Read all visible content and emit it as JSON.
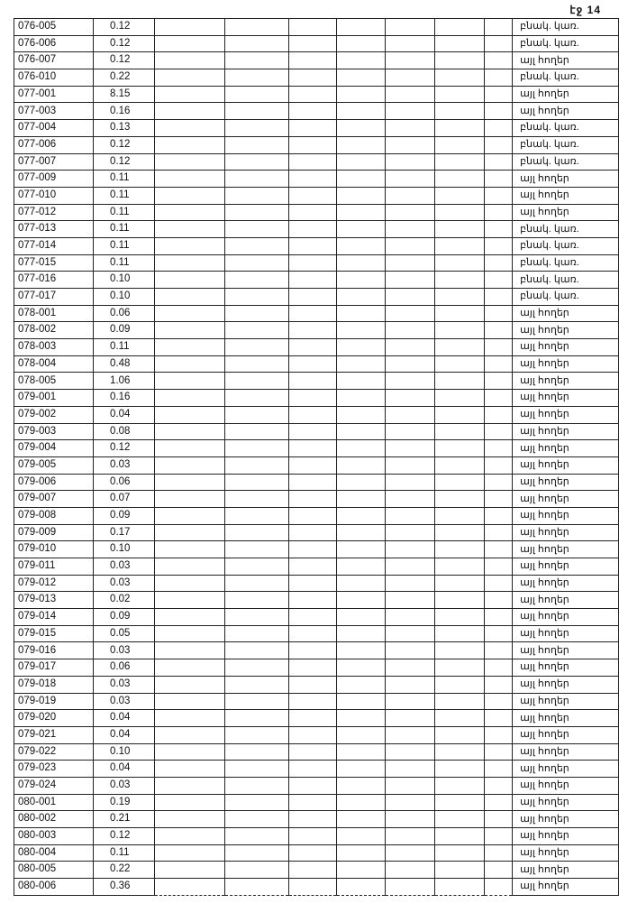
{
  "page_label": "էջ 14",
  "empty_columns": 7,
  "rows": [
    {
      "id": "076-005",
      "area": "0.12",
      "type": "բնակ. կառ."
    },
    {
      "id": "076-006",
      "area": "0.12",
      "type": "բնակ. կառ."
    },
    {
      "id": "076-007",
      "area": "0.12",
      "type": "այլ հողեր"
    },
    {
      "id": "076-010",
      "area": "0.22",
      "type": "բնակ. կառ."
    },
    {
      "id": "077-001",
      "area": "8.15",
      "type": "այլ հողեր"
    },
    {
      "id": "077-003",
      "area": "0.16",
      "type": "այլ հողեր"
    },
    {
      "id": "077-004",
      "area": "0.13",
      "type": "բնակ. կառ."
    },
    {
      "id": "077-006",
      "area": "0.12",
      "type": "բնակ. կառ."
    },
    {
      "id": "077-007",
      "area": "0.12",
      "type": "բնակ. կառ."
    },
    {
      "id": "077-009",
      "area": "0.11",
      "type": "այլ հողեր"
    },
    {
      "id": "077-010",
      "area": "0.11",
      "type": "այլ հողեր"
    },
    {
      "id": "077-012",
      "area": "0.11",
      "type": "այլ հողեր"
    },
    {
      "id": "077-013",
      "area": "0.11",
      "type": "բնակ. կառ."
    },
    {
      "id": "077-014",
      "area": "0.11",
      "type": "բնակ. կառ."
    },
    {
      "id": "077-015",
      "area": "0.11",
      "type": "բնակ. կառ."
    },
    {
      "id": "077-016",
      "area": "0.10",
      "type": "բնակ. կառ."
    },
    {
      "id": "077-017",
      "area": "0.10",
      "type": "բնակ. կառ."
    },
    {
      "id": "078-001",
      "area": "0.06",
      "type": "այլ հողեր"
    },
    {
      "id": "078-002",
      "area": "0.09",
      "type": "այլ հողեր"
    },
    {
      "id": "078-003",
      "area": "0.11",
      "type": "այլ հողեր"
    },
    {
      "id": "078-004",
      "area": "0.48",
      "type": "այլ հողեր"
    },
    {
      "id": "078-005",
      "area": "1.06",
      "type": "այլ հողեր"
    },
    {
      "id": "079-001",
      "area": "0.16",
      "type": "այլ հողեր"
    },
    {
      "id": "079-002",
      "area": "0.04",
      "type": "այլ հողեր"
    },
    {
      "id": "079-003",
      "area": "0.08",
      "type": "այլ հողեր"
    },
    {
      "id": "079-004",
      "area": "0.12",
      "type": "այլ հողեր"
    },
    {
      "id": "079-005",
      "area": "0.03",
      "type": "այլ հողեր"
    },
    {
      "id": "079-006",
      "area": "0.06",
      "type": "այլ հողեր"
    },
    {
      "id": "079-007",
      "area": "0.07",
      "type": "այլ հողեր"
    },
    {
      "id": "079-008",
      "area": "0.09",
      "type": "այլ հողեր"
    },
    {
      "id": "079-009",
      "area": "0.17",
      "type": "այլ հողեր"
    },
    {
      "id": "079-010",
      "area": "0.10",
      "type": "այլ հողեր"
    },
    {
      "id": "079-011",
      "area": "0.03",
      "type": "այլ հողեր"
    },
    {
      "id": "079-012",
      "area": "0.03",
      "type": "այլ հողեր"
    },
    {
      "id": "079-013",
      "area": "0.02",
      "type": "այլ հողեր"
    },
    {
      "id": "079-014",
      "area": "0.09",
      "type": "այլ հողեր"
    },
    {
      "id": "079-015",
      "area": "0.05",
      "type": "այլ հողեր"
    },
    {
      "id": "079-016",
      "area": "0.03",
      "type": "այլ հողեր"
    },
    {
      "id": "079-017",
      "area": "0.06",
      "type": "այլ հողեր"
    },
    {
      "id": "079-018",
      "area": "0.03",
      "type": "այլ հողեր"
    },
    {
      "id": "079-019",
      "area": "0.03",
      "type": "այլ հողեր"
    },
    {
      "id": "079-020",
      "area": "0.04",
      "type": "այլ հողեր"
    },
    {
      "id": "079-021",
      "area": "0.04",
      "type": "այլ հողեր"
    },
    {
      "id": "079-022",
      "area": "0.10",
      "type": "այլ հողեր"
    },
    {
      "id": "079-023",
      "area": "0.04",
      "type": "այլ հողեր"
    },
    {
      "id": "079-024",
      "area": "0.03",
      "type": "այլ հողեր"
    },
    {
      "id": "080-001",
      "area": "0.19",
      "type": "այլ հողեր"
    },
    {
      "id": "080-002",
      "area": "0.21",
      "type": "այլ հողեր"
    },
    {
      "id": "080-003",
      "area": "0.12",
      "type": "այլ հողեր"
    },
    {
      "id": "080-004",
      "area": "0.11",
      "type": "այլ հողեր"
    },
    {
      "id": "080-005",
      "area": "0.22",
      "type": "այլ հողեր"
    },
    {
      "id": "080-006",
      "area": "0.36",
      "type": "այլ հողեր"
    }
  ]
}
